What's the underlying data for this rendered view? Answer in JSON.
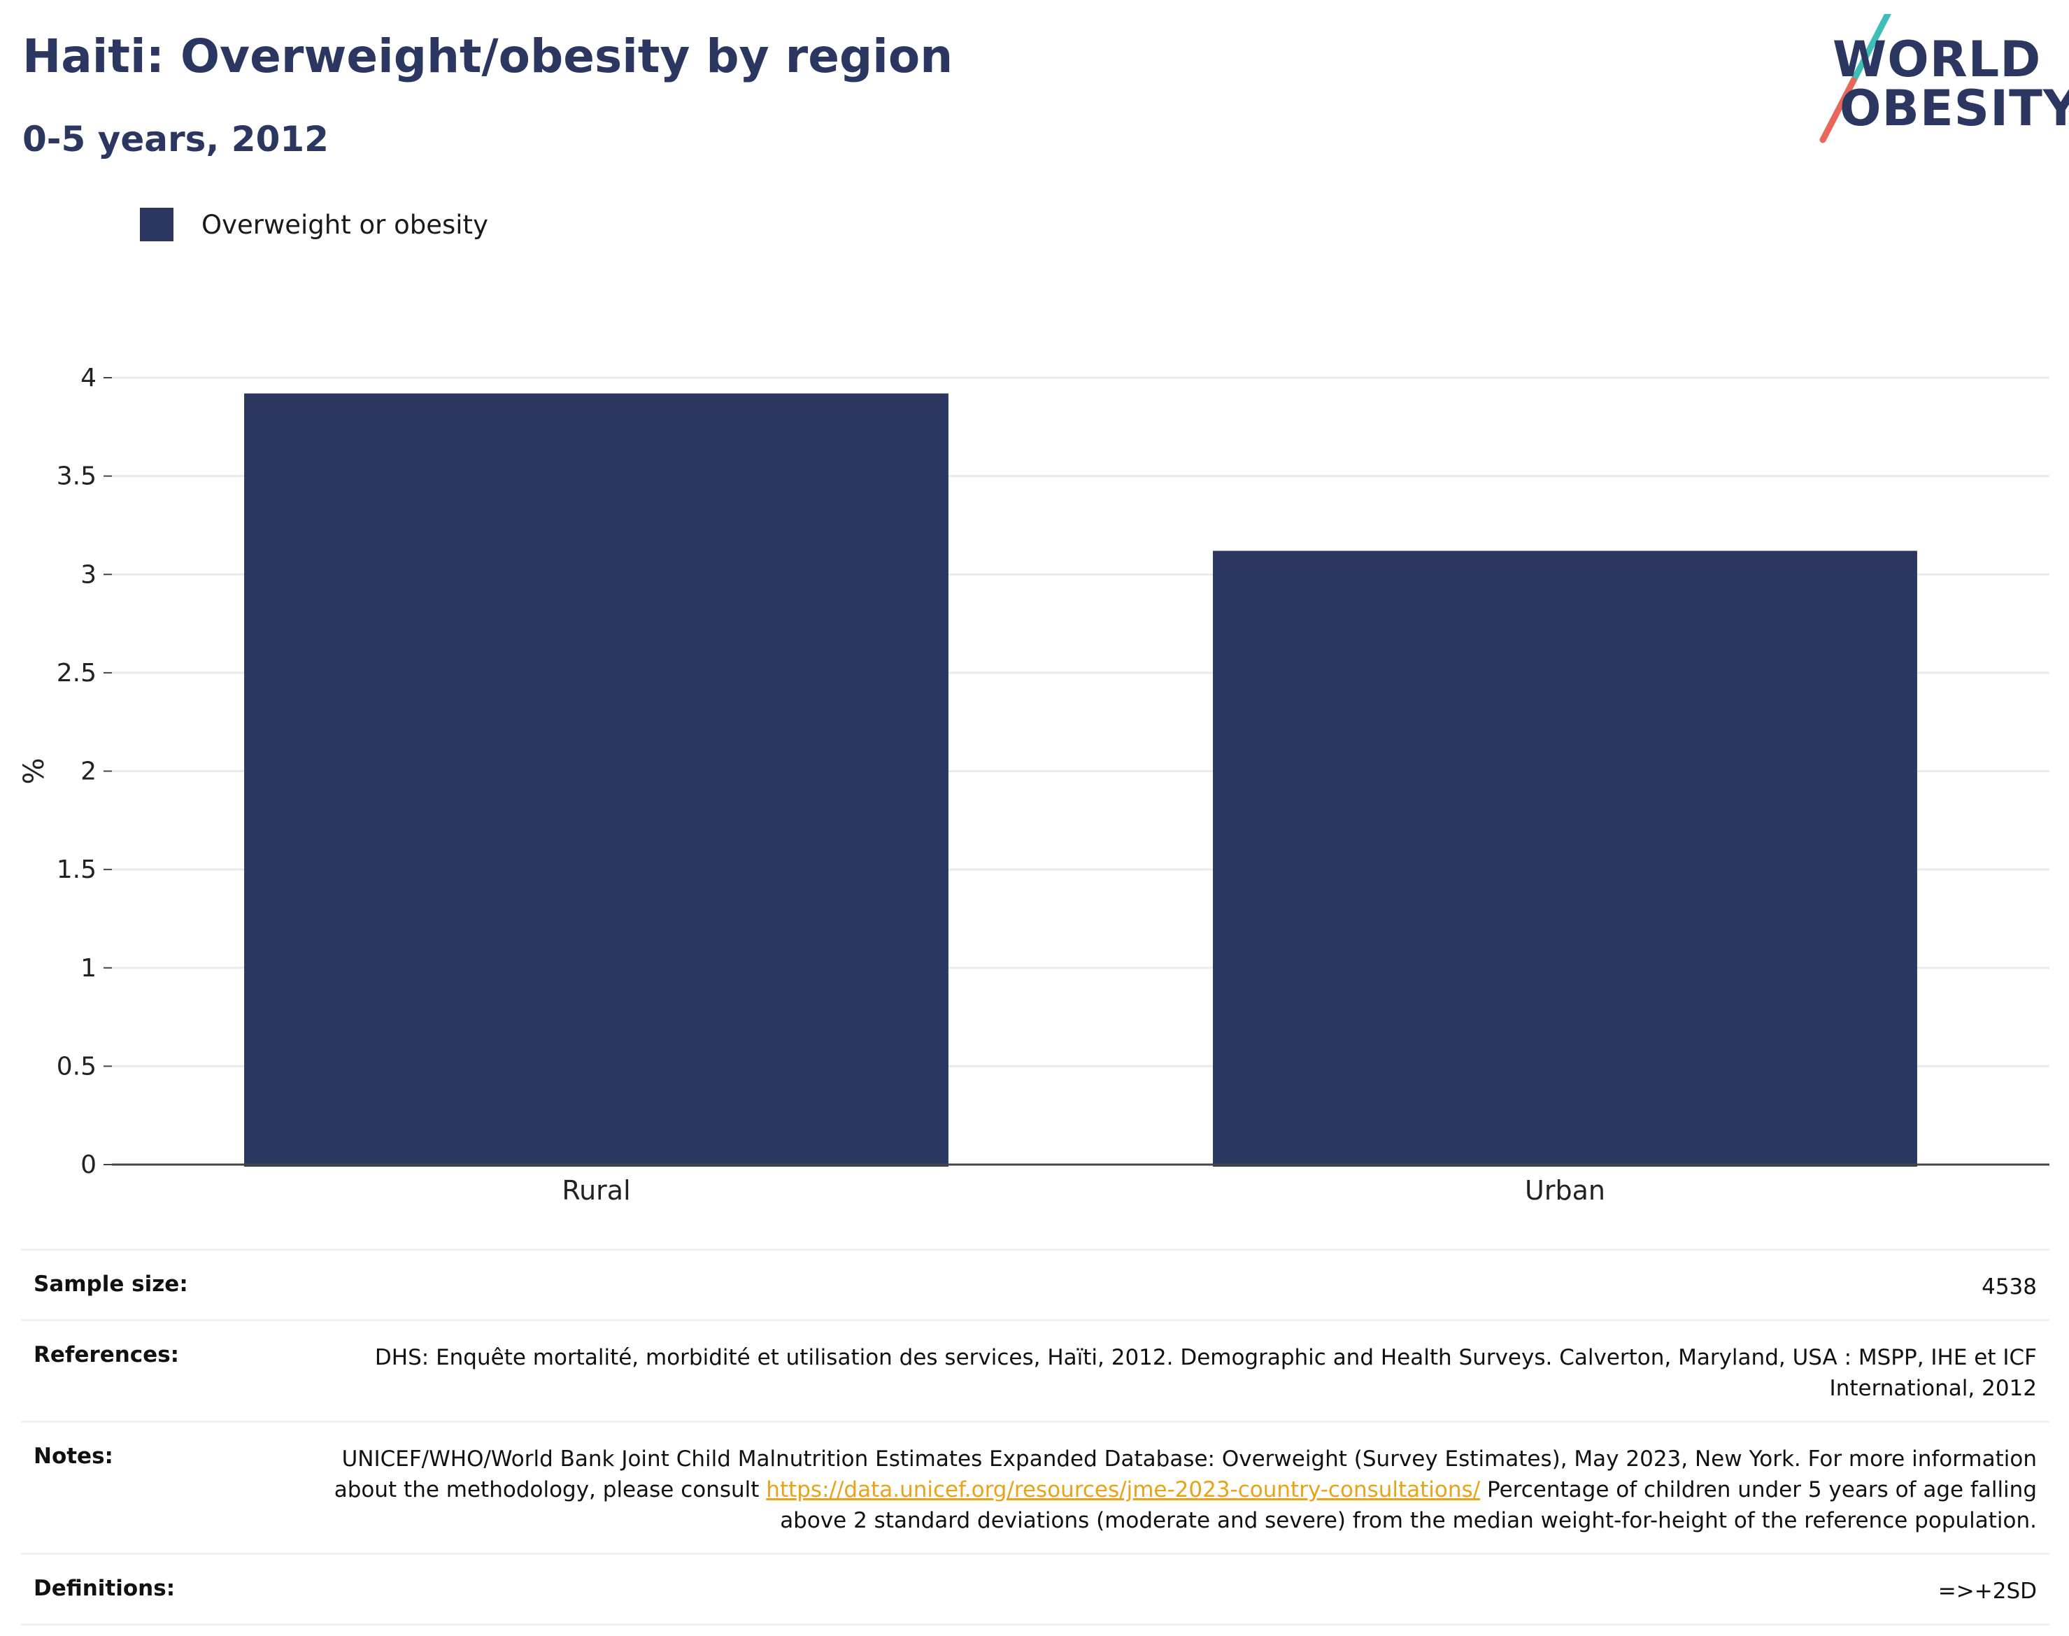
{
  "header": {
    "title": "Haiti: Overweight/obesity by region",
    "subtitle": "0-5 years, 2012"
  },
  "logo": {
    "line1": "WORLD",
    "line2": "OBESITY",
    "colors": {
      "teal": "#3dbfb8",
      "coral": "#e8675a",
      "navy": "#2b3761"
    }
  },
  "legend": {
    "items": [
      {
        "label": "Overweight or obesity",
        "color": "#2b3761"
      }
    ]
  },
  "chart_data": {
    "type": "bar",
    "categories": [
      "Rural",
      "Urban"
    ],
    "series": [
      {
        "name": "Overweight or obesity",
        "values": [
          3.92,
          3.12
        ],
        "color": "#2b3761"
      }
    ],
    "ylabel": "%",
    "ylim": [
      0,
      4
    ],
    "yticks": [
      0,
      0.5,
      1,
      1.5,
      2,
      2.5,
      3,
      3.5,
      4
    ],
    "ytick_labels": [
      "0",
      "0.5",
      "1",
      "1.5",
      "2",
      "2.5",
      "3",
      "3.5",
      "4"
    ],
    "grid": true,
    "legend_position": "top-left"
  },
  "info": {
    "sample_size": {
      "label": "Sample size:",
      "value": "4538"
    },
    "references": {
      "label": "References:",
      "value": "DHS: Enquête mortalité, morbidité et utilisation des services, Haïti, 2012. Demographic and Health Surveys. Calverton, Maryland, USA : MSPP, IHE et ICF International, 2012"
    },
    "notes": {
      "label": "Notes:",
      "text_before": "UNICEF/WHO/World Bank Joint Child Malnutrition Estimates Expanded Database: Overweight (Survey Estimates), May 2023, New York. For more information about the methodology, please consult ",
      "link": "https://data.unicef.org/resources/jme-2023-country-consultations/",
      "text_after": " Percentage of children under 5 years of age falling above 2 standard deviations (moderate and severe) from the median weight-for-height of the reference population."
    },
    "definitions": {
      "label": "Definitions:",
      "value": "=>+2SD"
    }
  }
}
